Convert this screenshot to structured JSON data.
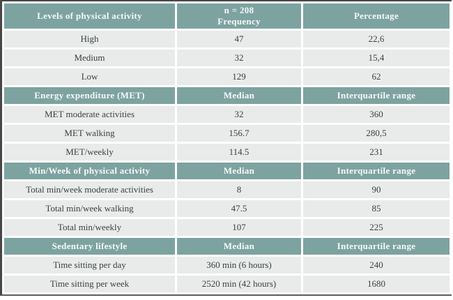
{
  "colors": {
    "header_bg": "#7da3a0",
    "header_text": "#f7f9f8",
    "row_bg": "#e8ebe9",
    "body_text": "#3b4142",
    "border_dark": "#474747"
  },
  "sections": [
    {
      "title": "Levels of physical activity",
      "col2_header_line1": "n = 208",
      "col2_header_line2": "Frequency",
      "col3_header": "Percentage",
      "rows": [
        {
          "label": "High",
          "value1": "47",
          "value2": "22,6"
        },
        {
          "label": "Medium",
          "value1": "32",
          "value2": "15,4"
        },
        {
          "label": "Low",
          "value1": "129",
          "value2": "62"
        }
      ]
    },
    {
      "title": "Energy expenditure (MET)",
      "col2_header": "Median",
      "col3_header": "Interquartile range",
      "rows": [
        {
          "label": "MET moderate activities",
          "value1": "32",
          "value2": "360"
        },
        {
          "label": "MET walking",
          "value1": "156.7",
          "value2": "280,5"
        },
        {
          "label": "MET/weekly",
          "value1": "114.5",
          "value2": "231"
        }
      ]
    },
    {
      "title": "Min/Week of physical activity",
      "col2_header": "Median",
      "col3_header": "Interquartile range",
      "rows": [
        {
          "label": "Total min/week moderate activities",
          "value1": "8",
          "value2": "90"
        },
        {
          "label": "Total min/week walking",
          "value1": "47.5",
          "value2": "85"
        },
        {
          "label": "Total min/weekly",
          "value1": "107",
          "value2": "225"
        }
      ]
    },
    {
      "title": "Sedentary lifestyle",
      "col2_header": "Median",
      "col3_header": "Interquartile range",
      "rows": [
        {
          "label": "Time sitting per day",
          "value1": "360 min (6 hours)",
          "value2": "240"
        },
        {
          "label": "Time sitting per week",
          "value1": "2520 min (42 hours)",
          "value2": "1680"
        }
      ]
    }
  ]
}
